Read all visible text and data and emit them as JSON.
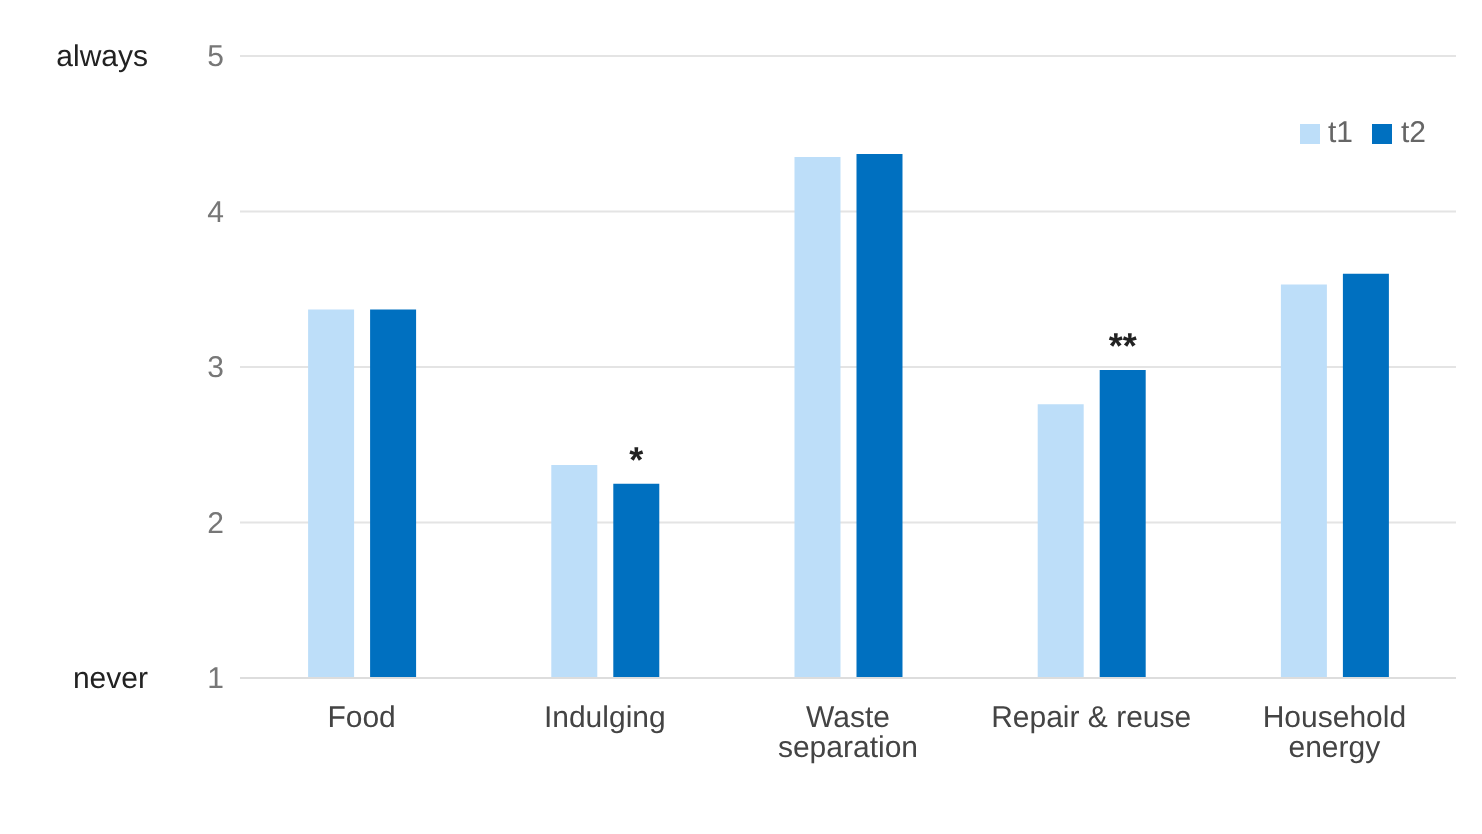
{
  "chart_data": {
    "type": "bar",
    "categories": [
      "Food",
      "Indulging",
      "Waste separation",
      "Repair & reuse",
      "Household energy"
    ],
    "series": [
      {
        "name": "t1",
        "color": "#bddef9",
        "values": [
          3.37,
          2.37,
          4.35,
          2.76,
          3.53
        ]
      },
      {
        "name": "t2",
        "color": "#0070c0",
        "values": [
          3.37,
          2.25,
          4.37,
          2.98,
          3.6
        ],
        "value_labels": [
          null,
          "*",
          null,
          "**",
          null
        ]
      }
    ],
    "ylim": [
      1,
      5
    ],
    "yticks": [
      1,
      2,
      3,
      4,
      5
    ],
    "grid": "y",
    "legend": "top right",
    "annotations": [
      "always",
      "never"
    ]
  }
}
